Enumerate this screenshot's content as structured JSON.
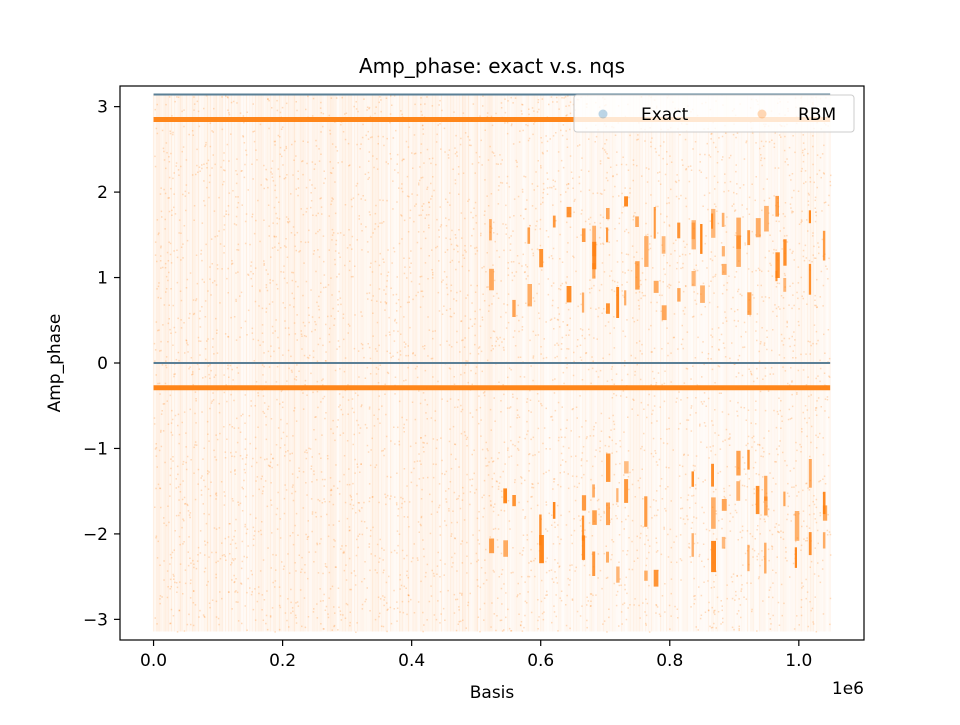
{
  "chart_data": {
    "type": "scatter",
    "title": "Amp_phase: exact v.s. nqs",
    "xlabel": "Basis",
    "ylabel": "Amp_phase",
    "x_offset_label": "1e6",
    "xlim": [
      -0.052,
      1.101
    ],
    "ylim": [
      -3.2415,
      3.2415
    ],
    "x_ticks": [
      0.0,
      0.2,
      0.4,
      0.6,
      0.8,
      1.0
    ],
    "x_tick_labels": [
      "0.0",
      "0.2",
      "0.4",
      "0.6",
      "0.8",
      "1.0"
    ],
    "y_ticks": [
      3,
      2,
      1,
      0,
      -1,
      -2,
      -3
    ],
    "y_tick_labels": [
      "3",
      "2",
      "1",
      "0",
      "−1",
      "−2",
      "−3"
    ],
    "grid": false,
    "legend": {
      "placement": "top-right",
      "columns": 2
    },
    "series": [
      {
        "name": "Exact",
        "color": "#1f77b4",
        "marker": "point",
        "levels": [
          3.1416,
          0.0
        ],
        "x_range": [
          0.0,
          1.048576
        ]
      },
      {
        "name": "RBM",
        "color": "#ff7f0e",
        "marker": "point",
        "dense_bands": [
          2.85,
          -0.29
        ],
        "value_range": [
          -3.1416,
          3.1416
        ],
        "x_range": [
          0.0,
          1.048576
        ],
        "clusters_after_x": 0.52,
        "cluster_levels_upper": [
          1.65,
          1.4,
          0.85
        ],
        "cluster_levels_lower": [
          -1.4,
          -1.7,
          -2.3
        ]
      }
    ]
  }
}
